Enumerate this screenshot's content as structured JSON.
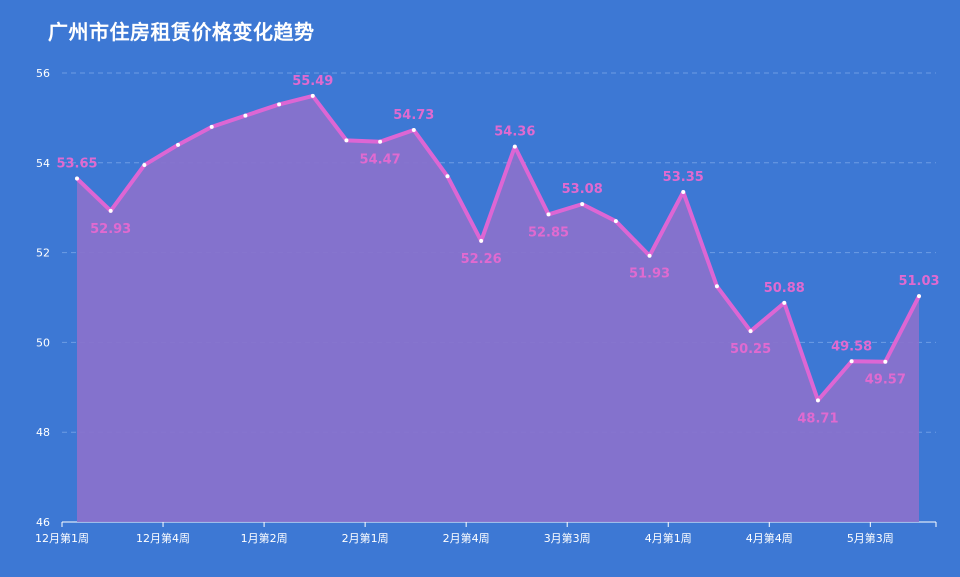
{
  "title": "广州市住房租赁价格变化趋势",
  "chart_data": {
    "type": "area",
    "title": "广州市住房租赁价格变化趋势",
    "ylim": [
      46,
      56
    ],
    "yticks": [
      46,
      48,
      50,
      52,
      54,
      56
    ],
    "x_tick_labels": [
      {
        "index": 0,
        "label": "12月第1周"
      },
      {
        "index": 3,
        "label": "12月第4周"
      },
      {
        "index": 6,
        "label": "1月第2周"
      },
      {
        "index": 9,
        "label": "2月第1周"
      },
      {
        "index": 12,
        "label": "2月第4周"
      },
      {
        "index": 15,
        "label": "3月第3周"
      },
      {
        "index": 18,
        "label": "4月第1周"
      },
      {
        "index": 21,
        "label": "4月第4周"
      },
      {
        "index": 24,
        "label": "5月第3周"
      }
    ],
    "values": [
      53.65,
      52.93,
      53.95,
      54.4,
      54.8,
      55.05,
      55.3,
      55.49,
      54.5,
      54.47,
      54.73,
      53.7,
      52.26,
      54.36,
      52.85,
      53.08,
      52.7,
      51.93,
      53.35,
      51.25,
      50.25,
      50.88,
      48.71,
      49.58,
      49.57,
      51.03
    ],
    "data_labels": [
      {
        "index": 0,
        "text": "53.65",
        "pos": "above"
      },
      {
        "index": 1,
        "text": "52.93",
        "pos": "below"
      },
      {
        "index": 7,
        "text": "55.49",
        "pos": "above"
      },
      {
        "index": 9,
        "text": "54.47",
        "pos": "below"
      },
      {
        "index": 10,
        "text": "54.73",
        "pos": "above"
      },
      {
        "index": 12,
        "text": "52.26",
        "pos": "below"
      },
      {
        "index": 13,
        "text": "54.36",
        "pos": "above"
      },
      {
        "index": 14,
        "text": "52.85",
        "pos": "below"
      },
      {
        "index": 15,
        "text": "53.08",
        "pos": "above"
      },
      {
        "index": 17,
        "text": "51.93",
        "pos": "below"
      },
      {
        "index": 18,
        "text": "53.35",
        "pos": "above"
      },
      {
        "index": 20,
        "text": "50.25",
        "pos": "below"
      },
      {
        "index": 21,
        "text": "50.88",
        "pos": "above"
      },
      {
        "index": 22,
        "text": "48.71",
        "pos": "below"
      },
      {
        "index": 23,
        "text": "49.58",
        "pos": "above"
      },
      {
        "index": 24,
        "text": "49.57",
        "pos": "below"
      },
      {
        "index": 25,
        "text": "51.03",
        "pos": "above"
      }
    ],
    "colors": {
      "background": "#3d78d4",
      "line": "#dd66d4",
      "area": "#8a72cc",
      "grid": "#7aa6e8",
      "text": "#ffffff",
      "label": "#e06ad0"
    },
    "grid": true
  }
}
